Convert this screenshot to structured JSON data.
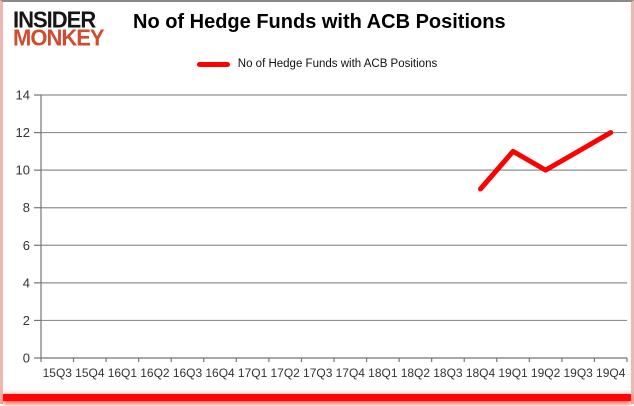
{
  "header": {
    "logo_line1": "INSIDER",
    "logo_line2": "MONKEY",
    "title": "No of Hedge Funds with ACB Positions"
  },
  "legend": {
    "label": "No of Hedge Funds with ACB Positions"
  },
  "colors": {
    "logo_black": "#161616",
    "logo_red": "#d14b2e",
    "line": "#fe0000",
    "gridline": "#8f8f8f",
    "axis": "#757575",
    "tick_label": "#333333",
    "bottom_bar": "#ff0606",
    "frame_side": "#f0b6b0",
    "frame_top": "#8a8a8a"
  },
  "chart_data": {
    "type": "line",
    "title": "No of Hedge Funds with ACB Positions",
    "categories": [
      "15Q3",
      "15Q4",
      "16Q1",
      "16Q2",
      "16Q3",
      "16Q4",
      "17Q1",
      "17Q2",
      "17Q3",
      "17Q4",
      "18Q1",
      "18Q2",
      "18Q3",
      "18Q4",
      "19Q1",
      "19Q2",
      "19Q3",
      "19Q4"
    ],
    "series": [
      {
        "name": "No of Hedge Funds with ACB Positions",
        "color": "#fe0000",
        "values": [
          null,
          null,
          null,
          null,
          null,
          null,
          null,
          null,
          null,
          null,
          null,
          null,
          null,
          9,
          11,
          10,
          11,
          12
        ]
      }
    ],
    "xlabel": "",
    "ylabel": "",
    "ylim": [
      0,
      14
    ],
    "ytick_step": 2,
    "grid": true,
    "legend_position": "top"
  }
}
